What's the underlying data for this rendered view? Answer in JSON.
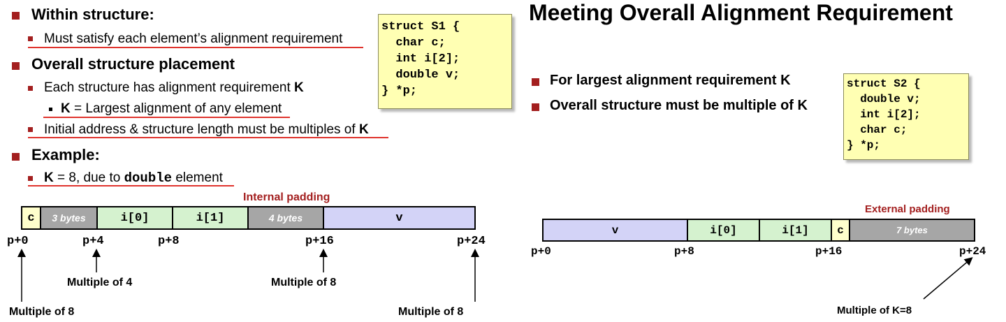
{
  "left": {
    "bullet1": "Within structure:",
    "bullet1_sub": "Must satisfy each element’s alignment requirement",
    "bullet2": "Overall structure placement",
    "bullet2_sub1_a": "Each structure has alignment requirement ",
    "bullet2_sub1_b": "K",
    "bullet2_subsub_a": "K",
    "bullet2_subsub_b": " = Largest alignment of any element",
    "bullet2_sub2_a": "Initial address & structure length must be multiples of ",
    "bullet2_sub2_b": "K",
    "bullet3": "Example:",
    "bullet3_sub_a": "K",
    "bullet3_sub_b": " = 8, due to ",
    "bullet3_sub_c": "double",
    "bullet3_sub_d": " element",
    "code": "struct S1 {\n  char c;\n  int i[2];\n  double v;\n} *p;",
    "internal_padding": "Internal padding",
    "cells": [
      "c",
      "3 bytes",
      "i[0]",
      "i[1]",
      "4 bytes",
      "v"
    ],
    "offsets": [
      "p+0",
      "p+4",
      "p+8",
      "p+16",
      "p+24"
    ],
    "ann_mult4": "Multiple of 4",
    "ann_mult8_mid": "Multiple of 8",
    "ann_mult8_left": "Multiple of 8",
    "ann_mult8_right": "Multiple of 8"
  },
  "right": {
    "title": "Meeting Overall Alignment Requirement",
    "bullet1": "For largest alignment requirement K",
    "bullet2": "Overall structure must be multiple of K",
    "code": "struct S2 {\n  double v;\n  int i[2];\n  char c;\n} *p;",
    "external_padding": "External padding",
    "cells": [
      "v",
      "i[0]",
      "i[1]",
      "c",
      "7 bytes"
    ],
    "offsets": [
      "p+0",
      "p+8",
      "p+16",
      "p+24"
    ],
    "ann_multK": "Multiple of K=8"
  },
  "colors": {
    "bullet": "#a31f1f",
    "underline": "#e0332d",
    "code_bg": "#ffffb3",
    "char_cell": "#ffffcc",
    "int_cell": "#d5f2cf",
    "double_cell": "#d3d3f7",
    "padding_cell": "#a6a6a6"
  }
}
